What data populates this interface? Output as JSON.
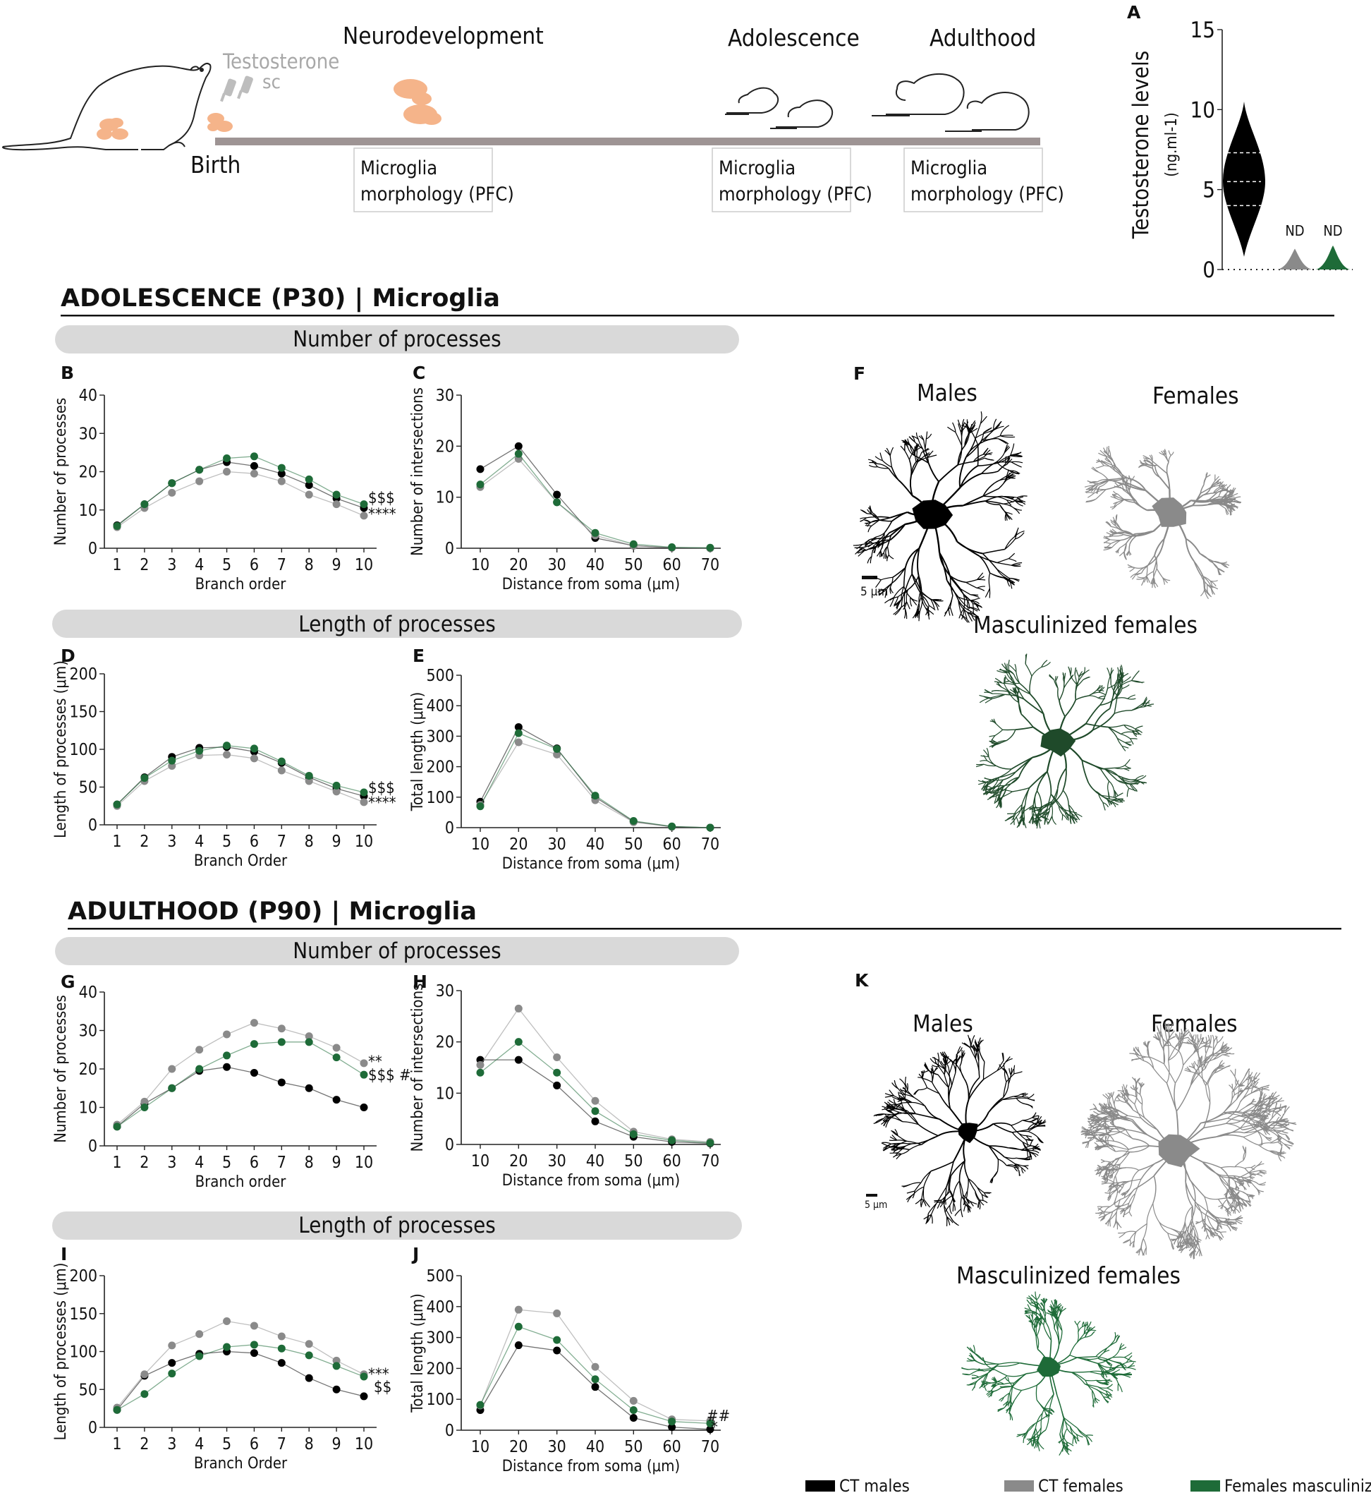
{
  "colors": {
    "males": "#000000",
    "females": "#8a8a8a",
    "masc": "#1e6b38",
    "banner": "#d9d9d9",
    "timeline": "#9e9494",
    "microglia_icon": "#f5b48a"
  },
  "timeline": {
    "testosterone": "Testosterone",
    "sc": "sc",
    "birth": "Birth",
    "neurodevelopment": "Neurodevelopment",
    "adolescence": "Adolescence",
    "adulthood": "Adulthood",
    "box_line1": "Microglia",
    "box_line2": "morphology (PFC)"
  },
  "sections": {
    "adolescence": "ADOLESCENCE (P30) | Microglia",
    "adulthood": "ADULTHOOD (P90) | Microglia",
    "number_banner": "Number of processes",
    "length_banner": "Length of processes"
  },
  "morphology": {
    "males": "Males",
    "females": "Females",
    "masc": "Masculinized females",
    "scale": "5 μm"
  },
  "legend": {
    "males": "CT males",
    "females": "CT females",
    "masc": "Females masculinized"
  },
  "series_names": [
    "CT males",
    "CT females",
    "Females masculinized"
  ],
  "chart_data": [
    {
      "panel": "A",
      "type": "violin",
      "ylabel": "Testosterone levels",
      "yunit": "(ng.ml-1)",
      "ylim": [
        0,
        15
      ],
      "yticks": [
        0,
        5,
        10,
        15
      ],
      "groups": [
        {
          "name": "CT males",
          "min": 0.8,
          "q1": 4.0,
          "median": 5.5,
          "q3": 7.3,
          "max": 10.5,
          "label": ""
        },
        {
          "name": "CT females",
          "max": 1.3,
          "label": "ND"
        },
        {
          "name": "Females masculinized",
          "max": 1.5,
          "label": "ND"
        }
      ]
    },
    {
      "panel": "B",
      "type": "line",
      "xlabel": "Branch order",
      "ylabel": "Number of processes",
      "ylim": [
        0,
        40
      ],
      "yticks": [
        0,
        10,
        20,
        30,
        40
      ],
      "x": [
        1,
        2,
        3,
        4,
        5,
        6,
        7,
        8,
        9,
        10
      ],
      "series": [
        {
          "name": "CT males",
          "values": [
            6,
            11.5,
            17,
            20.5,
            22.5,
            21.5,
            19.5,
            16.5,
            13,
            10.5
          ]
        },
        {
          "name": "CT females",
          "values": [
            5.5,
            10.5,
            14.5,
            17.5,
            20,
            19.5,
            17.5,
            14,
            11.5,
            8.5
          ]
        },
        {
          "name": "Females masculinized",
          "values": [
            5.8,
            11.5,
            17,
            20.5,
            23.5,
            24,
            21,
            18,
            14,
            11.5
          ]
        }
      ],
      "annotations": [
        "$$$",
        "****"
      ]
    },
    {
      "panel": "C",
      "type": "line",
      "xlabel": "Distance from soma (μm)",
      "ylabel": "Number of intersections",
      "ylim": [
        0,
        30
      ],
      "yticks": [
        0,
        10,
        20,
        30
      ],
      "x": [
        10,
        20,
        30,
        40,
        50,
        60,
        70
      ],
      "series": [
        {
          "name": "CT males",
          "values": [
            15.5,
            20,
            10.5,
            2,
            0.5,
            0.1,
            0
          ]
        },
        {
          "name": "CT females",
          "values": [
            12,
            17.5,
            9,
            2.5,
            0.5,
            0.1,
            0
          ]
        },
        {
          "name": "Females masculinized",
          "values": [
            12.5,
            18.5,
            9,
            3,
            0.8,
            0.2,
            0.1
          ]
        }
      ],
      "annotations": []
    },
    {
      "panel": "D",
      "type": "line",
      "xlabel": "Branch Order",
      "ylabel": "Length of processes (μm)",
      "ylim": [
        0,
        200
      ],
      "yticks": [
        0,
        50,
        100,
        150,
        200
      ],
      "x": [
        1,
        2,
        3,
        4,
        5,
        6,
        7,
        8,
        9,
        10
      ],
      "series": [
        {
          "name": "CT males",
          "values": [
            27,
            63,
            90,
            102,
            103,
            97,
            82,
            63,
            48,
            38
          ]
        },
        {
          "name": "CT females",
          "values": [
            25,
            58,
            78,
            92,
            93,
            88,
            72,
            58,
            44,
            30
          ]
        },
        {
          "name": "Females masculinized",
          "values": [
            27,
            62,
            85,
            98,
            105,
            101,
            84,
            65,
            52,
            43
          ]
        }
      ],
      "annotations": [
        "$$$",
        "****"
      ]
    },
    {
      "panel": "E",
      "type": "line",
      "xlabel": "Distance from soma (μm)",
      "ylabel": "Total length (μm)",
      "ylim": [
        0,
        500
      ],
      "yticks": [
        0,
        100,
        200,
        300,
        400,
        500
      ],
      "x": [
        10,
        20,
        30,
        40,
        50,
        60,
        70
      ],
      "series": [
        {
          "name": "CT males",
          "values": [
            85,
            330,
            260,
            100,
            20,
            3,
            0
          ]
        },
        {
          "name": "CT females",
          "values": [
            75,
            280,
            240,
            90,
            18,
            3,
            0
          ]
        },
        {
          "name": "Females masculinized",
          "values": [
            70,
            310,
            258,
            105,
            22,
            4,
            0
          ]
        }
      ],
      "annotations": []
    },
    {
      "panel": "G",
      "type": "line",
      "xlabel": "Branch order",
      "ylabel": "Number of processes",
      "ylim": [
        0,
        40
      ],
      "yticks": [
        0,
        10,
        20,
        30,
        40
      ],
      "x": [
        1,
        2,
        3,
        4,
        5,
        6,
        7,
        8,
        9,
        10
      ],
      "series": [
        {
          "name": "CT males",
          "values": [
            5,
            11,
            15,
            19.5,
            20.5,
            19,
            16.5,
            15,
            12,
            10
          ]
        },
        {
          "name": "CT females",
          "values": [
            5.5,
            11.5,
            20,
            25,
            29,
            32,
            30.5,
            28.5,
            25.5,
            21.5
          ]
        },
        {
          "name": "Females masculinized",
          "values": [
            5,
            10,
            15,
            20,
            23.5,
            26.5,
            27,
            27,
            23,
            18.5
          ]
        }
      ],
      "annotations": [
        "**",
        "$$$ #"
      ]
    },
    {
      "panel": "H",
      "type": "line",
      "xlabel": "Distance from soma (μm)",
      "ylabel": "Number of intersections",
      "ylim": [
        0,
        30
      ],
      "yticks": [
        0,
        10,
        20,
        30
      ],
      "x": [
        10,
        20,
        30,
        40,
        50,
        60,
        70
      ],
      "series": [
        {
          "name": "CT males",
          "values": [
            16.5,
            16.5,
            11.5,
            4.5,
            1.5,
            0.5,
            0.2
          ]
        },
        {
          "name": "CT females",
          "values": [
            15.5,
            26.5,
            17,
            8.5,
            2.5,
            1,
            0.5
          ]
        },
        {
          "name": "Females masculinized",
          "values": [
            14,
            20,
            14,
            6.5,
            2,
            0.8,
            0.3
          ]
        }
      ],
      "annotations": []
    },
    {
      "panel": "I",
      "type": "line",
      "xlabel": "Branch Order",
      "ylabel": "Length of processes (μm)",
      "ylim": [
        0,
        200
      ],
      "yticks": [
        0,
        50,
        100,
        150,
        200
      ],
      "x": [
        1,
        2,
        3,
        4,
        5,
        6,
        7,
        8,
        9,
        10
      ],
      "series": [
        {
          "name": "CT males",
          "values": [
            23,
            68,
            85,
            97,
            100,
            98,
            85,
            65,
            50,
            41
          ]
        },
        {
          "name": "CT females",
          "values": [
            26,
            70,
            108,
            123,
            140,
            134,
            120,
            110,
            88,
            70
          ]
        },
        {
          "name": "Females masculinized",
          "values": [
            23,
            44,
            71,
            94,
            106,
            109,
            104,
            95,
            81,
            67
          ]
        }
      ],
      "annotations": [
        "***",
        "$$"
      ]
    },
    {
      "panel": "J",
      "type": "line",
      "xlabel": "Distance from soma (μm)",
      "ylabel": "Total length (μm)",
      "ylim": [
        0,
        500
      ],
      "yticks": [
        0,
        100,
        200,
        300,
        400,
        500
      ],
      "x": [
        10,
        20,
        30,
        40,
        50,
        60,
        70
      ],
      "series": [
        {
          "name": "CT males",
          "values": [
            65,
            275,
            258,
            140,
            40,
            10,
            3
          ]
        },
        {
          "name": "CT females",
          "values": [
            80,
            390,
            378,
            205,
            95,
            35,
            30
          ]
        },
        {
          "name": "Females masculinized",
          "values": [
            82,
            335,
            292,
            165,
            65,
            28,
            22
          ]
        }
      ],
      "annotations": [
        "##",
        "*"
      ]
    }
  ]
}
